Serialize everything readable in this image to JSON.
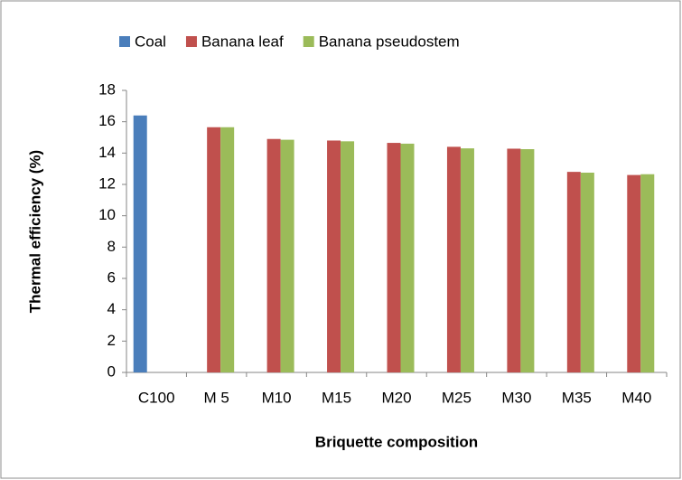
{
  "chart_data": {
    "type": "bar",
    "x_label": "Briquette composition",
    "y_label": "Thermal efficiency (%)",
    "categories": [
      "C100",
      "M 5",
      "M10",
      "M15",
      "M20",
      "M25",
      "M30",
      "M35",
      "M40"
    ],
    "series": [
      {
        "name": "Coal",
        "color": "#4a7ebb",
        "values": [
          16.4,
          null,
          null,
          null,
          null,
          null,
          null,
          null,
          null
        ]
      },
      {
        "name": "Banana leaf",
        "color": "#c0504d",
        "values": [
          null,
          15.65,
          14.9,
          14.8,
          14.65,
          14.4,
          14.28,
          12.8,
          12.6
        ]
      },
      {
        "name": "Banana pseudostem",
        "color": "#9bbb59",
        "values": [
          null,
          15.65,
          14.85,
          14.75,
          14.6,
          14.3,
          14.25,
          12.75,
          12.65
        ]
      }
    ],
    "ylim": [
      0,
      18
    ],
    "yticks": [
      0,
      2,
      4,
      6,
      8,
      10,
      12,
      14,
      16,
      18
    ],
    "legend": "top"
  }
}
